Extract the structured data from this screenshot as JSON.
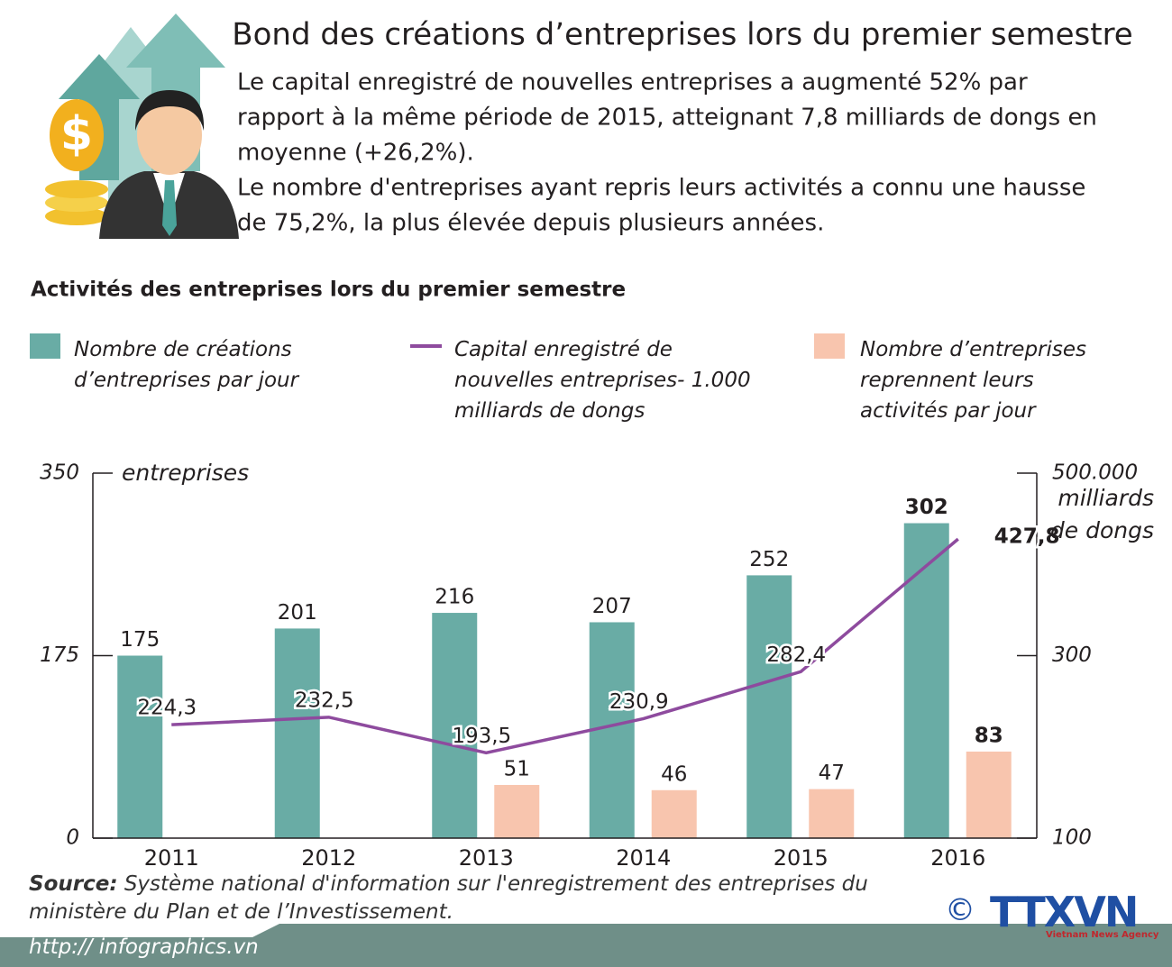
{
  "header": {
    "title": "Bond des créations d’entreprises lors du premier semestre",
    "lines": [
      "Le capital enregistré de nouvelles entreprises a augmenté 52% par",
      "rapport à la même période de 2015, atteignant 7,8 milliards de dongs en",
      "moyenne (+26,2%).",
      "Le nombre d'entreprises ayant repris leurs activités a connu une hausse",
      "de 75,2%, la plus élevée depuis plusieurs années."
    ]
  },
  "chart_data": {
    "type": "bar",
    "title": "Activités des entreprises lors du premier semestre",
    "categories": [
      "2011",
      "2012",
      "2013",
      "2014",
      "2015",
      "2016"
    ],
    "series": [
      {
        "name": "Nombre de créations d’entreprises par jour",
        "color": "#69aca5",
        "values": [
          175,
          201,
          216,
          207,
          252,
          302
        ]
      },
      {
        "name": "Capital enregistré de nouvelles entreprises- 1.000 milliards de dongs",
        "color": "#8e4b9e",
        "type": "line",
        "axis": "y2",
        "values": [
          224.3,
          232.5,
          193.5,
          230.9,
          282.4,
          427.8
        ],
        "value_labels": [
          "224,3",
          "232,5",
          "193,5",
          "230,9",
          "282,4",
          "427,8"
        ]
      },
      {
        "name": "Nombre d’entreprises reprennent leurs activités par jour",
        "color": "#f8c5ae",
        "values": [
          null,
          null,
          51,
          46,
          47,
          83
        ]
      }
    ],
    "ylim": [
      0,
      350
    ],
    "yticks": [
      0,
      175,
      350
    ],
    "ylabel": "entreprises",
    "y2lim": [
      100,
      500
    ],
    "y2ticks": [
      100,
      300,
      {
        "value": 500,
        "label": "500.000"
      }
    ],
    "y2label": "milliards de dongs"
  },
  "source": {
    "label": "Source:",
    "text": "Système national d'information sur l'enregistrement des entreprises du ministère du Plan et de l’Investissement."
  },
  "footer": {
    "url": "http:// infographics.vn",
    "copyright": "©",
    "logo": "TTXVN",
    "agency": "Vietnam News Agency"
  }
}
